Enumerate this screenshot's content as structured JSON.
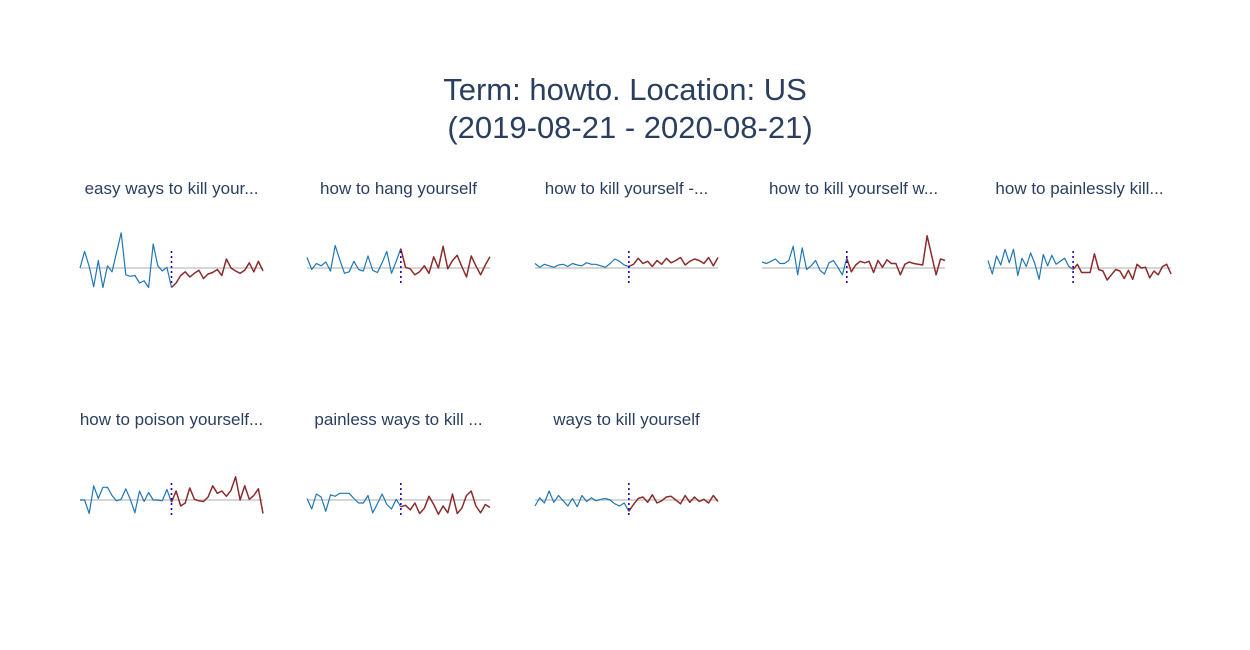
{
  "title_line1": "Term: howto. Location: US",
  "title_line2": "(2019-08-21 - 2020-08-21)",
  "colors": {
    "before": "#1f77b4",
    "after": "#8b2c2c",
    "baseline": "#c8c8c8",
    "event": "#2b00b5",
    "title": "#2a3f5f"
  },
  "chart_data": [
    {
      "type": "line",
      "title": "easy ways to kill your...",
      "event_index": 20,
      "series": [
        {
          "values": [
            0,
            2.2,
            0.2,
            -2.5,
            1,
            -2.6,
            0.3,
            -0.5,
            2.1,
            4.7,
            -0.9,
            -1.1,
            -1.0,
            -2.0,
            -1.7,
            -2.6,
            3.2,
            0.3,
            -0.4,
            0.1,
            -2.6,
            -2.0,
            -1.0,
            -0.5,
            -1.2,
            -0.7,
            -0.3,
            -1.4,
            -0.8,
            -0.6,
            -0.2,
            -1.0,
            1.2,
            0.0,
            -0.4,
            -0.7,
            -0.3,
            0.7,
            -0.5,
            0.9,
            -0.4
          ]
        }
      ]
    },
    {
      "type": "line",
      "title": "how to hang yourself",
      "event_index": 20,
      "series": [
        {
          "values": [
            1.4,
            -0.2,
            0.6,
            0.3,
            0.8,
            -0.4,
            3.0,
            1.1,
            -0.7,
            -0.5,
            0.9,
            -0.2,
            -0.4,
            1.6,
            -0.3,
            -0.6,
            0.7,
            2.2,
            -0.7,
            0.9,
            2.6,
            0.1,
            -0.1,
            -0.9,
            -0.5,
            0.3,
            -0.7,
            1.5,
            0.0,
            2.9,
            -0.1,
            1.0,
            1.7,
            0.2,
            -1.2,
            1.6,
            0.3,
            -0.9,
            0.4,
            1.5
          ]
        }
      ]
    },
    {
      "type": "line",
      "title": "how to kill yourself -...",
      "event_index": 20,
      "series": [
        {
          "values": [
            0.6,
            0.1,
            0.5,
            0.3,
            0.1,
            0.4,
            0.5,
            0.2,
            0.6,
            0.4,
            0.3,
            0.7,
            0.5,
            0.5,
            0.3,
            0.1,
            0.6,
            1.2,
            0.9,
            0.4,
            0.2,
            0.5,
            1.3,
            0.6,
            0.9,
            0.2,
            1.0,
            0.5,
            1.3,
            0.7,
            1.0,
            1.4,
            0.4,
            0.9,
            1.2,
            1.0,
            0.6,
            1.4,
            0.3,
            1.4
          ]
        }
      ]
    },
    {
      "type": "line",
      "title": "how to kill yourself w...",
      "event_index": 19,
      "series": [
        {
          "values": [
            0.8,
            0.6,
            0.9,
            1.2,
            0.6,
            0.6,
            1.0,
            2.9,
            -0.9,
            2.7,
            -0.2,
            0.3,
            1.0,
            -0.3,
            -0.8,
            0.7,
            1.0,
            0.1,
            -0.9,
            1.3,
            -0.5,
            0.4,
            0.9,
            0.7,
            0.9,
            -0.6,
            1.0,
            0.1,
            1.1,
            0.6,
            0.6,
            -0.9,
            0.5,
            0.8,
            0.6,
            0.5,
            0.4,
            4.3,
            1.7,
            -0.9,
            1.2,
            1.0
          ]
        }
      ]
    },
    {
      "type": "line",
      "title": "how to painlessly kill...",
      "event_index": 20,
      "series": [
        {
          "values": [
            1.0,
            -0.8,
            1.6,
            0.4,
            2.5,
            0.7,
            2.5,
            -1.0,
            1.3,
            0.2,
            2.0,
            0.6,
            -1.5,
            1.8,
            0.3,
            1.7,
            0.5,
            0.9,
            1.3,
            0.2,
            -0.2,
            0.5,
            -0.6,
            -0.6,
            -0.6,
            1.9,
            -0.2,
            -0.4,
            -1.6,
            -0.9,
            -0.2,
            -0.4,
            -1.4,
            -0.3,
            -1.5,
            0.5,
            0.0,
            0.1,
            -1.3,
            -0.4,
            -0.9,
            0.2,
            0.5,
            -0.8
          ]
        }
      ]
    },
    {
      "type": "line",
      "title": "how to poison yourself...",
      "event_index": 20,
      "series": [
        {
          "values": [
            0.0,
            0.0,
            -1.8,
            1.9,
            0.2,
            1.7,
            1.7,
            0.6,
            -0.1,
            0.1,
            1.5,
            0.1,
            -1.7,
            1.2,
            -0.2,
            1.0,
            0.0,
            0.0,
            -0.1,
            1.4,
            -0.3,
            1.2,
            -0.8,
            -0.4,
            1.6,
            0.1,
            -0.1,
            -0.2,
            0.4,
            1.9,
            0.9,
            1.2,
            0.5,
            1.3,
            3.1,
            0.0,
            1.9,
            0.1,
            0.6,
            1.5,
            -1.8
          ]
        }
      ]
    },
    {
      "type": "line",
      "title": "painless ways to kill ...",
      "event_index": 20,
      "series": [
        {
          "values": [
            0.2,
            -1.2,
            0.8,
            0.4,
            -1.5,
            0.7,
            0.5,
            0.9,
            0.9,
            0.9,
            0.2,
            -0.4,
            -0.4,
            0.6,
            -1.7,
            -0.5,
            0.8,
            -0.6,
            -1.2,
            0.1,
            -0.9,
            -0.7,
            -1.3,
            -0.4,
            -1.8,
            -1.1,
            0.5,
            -0.6,
            -1.9,
            -0.8,
            -1.7,
            0.8,
            -1.8,
            -1.1,
            0.6,
            1.2,
            -0.8,
            -1.7,
            -0.6,
            -1.0
          ]
        }
      ]
    },
    {
      "type": "line",
      "title": "ways to kill yourself",
      "event_index": 20,
      "series": [
        {
          "values": [
            -0.8,
            0.3,
            -0.4,
            1.2,
            -0.3,
            0.6,
            -0.1,
            -0.8,
            0.2,
            -0.9,
            0.6,
            -0.2,
            0.3,
            -0.1,
            0.1,
            0.2,
            0.0,
            -0.5,
            -0.8,
            -0.4,
            -1.5,
            -0.6,
            0.2,
            0.4,
            -0.3,
            0.7,
            -0.4,
            -0.1,
            0.4,
            0.5,
            0.0,
            -0.5,
            0.6,
            -0.3,
            0.4,
            -0.2,
            0.1,
            -0.4,
            0.6,
            -0.2
          ]
        }
      ]
    }
  ]
}
